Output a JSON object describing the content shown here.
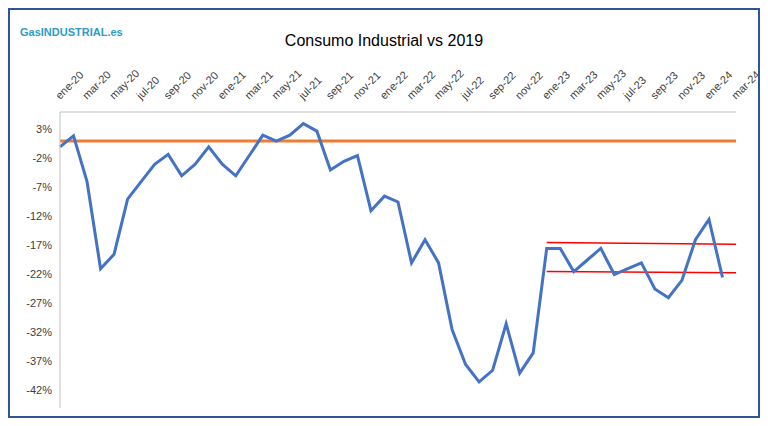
{
  "chart_data": {
    "type": "line",
    "title": "Consumo Industrial vs 2019",
    "logo": "GasINDUSTRIAL.es",
    "categories": [
      "ene-20",
      null,
      "mar-20",
      null,
      "may-20",
      null,
      "jul-20",
      null,
      "sep-20",
      null,
      "nov-20",
      null,
      "ene-21",
      null,
      "mar-21",
      null,
      "may-21",
      null,
      "jul-21",
      null,
      "sep-21",
      null,
      "nov-21",
      null,
      "ene-22",
      null,
      "mar-22",
      null,
      "may-22",
      null,
      "jul-22",
      null,
      "sep-22",
      null,
      "nov-22",
      null,
      "ene-23",
      null,
      "mar-23",
      null,
      "may-23",
      null,
      "jul-23",
      null,
      "sep-23",
      null,
      "nov-23",
      null,
      "ene-24",
      null,
      "mar-24"
    ],
    "series": [
      {
        "name": "Consumo Industrial vs 2019",
        "color": "#4472C4",
        "values": [
          0,
          1.9,
          -6,
          -21,
          -18.5,
          -9,
          -6,
          -3,
          -1.3,
          -5,
          -3,
          0,
          -3,
          -5,
          -1.5,
          2,
          1,
          2,
          4,
          2.7,
          -4,
          -2.5,
          -1.5,
          -11,
          -8.5,
          -9.5,
          -20,
          -16,
          -20,
          -31.5,
          -37.5,
          -40.5,
          -38.5,
          -30.5,
          -39,
          -35.5,
          -17.5,
          -17.5,
          -21.5,
          -19.5,
          -17.5,
          -22,
          -21,
          -20,
          -24.5,
          -26,
          -23,
          -16,
          -12.5,
          -22.5,
          null
        ]
      }
    ],
    "reference_lines": [
      {
        "y": 1,
        "color": "#ED7D31"
      },
      {
        "x": [
          "ene-23",
          "mar-24"
        ],
        "y": [
          -16.5,
          -16.8
        ],
        "color": "#FF0000"
      },
      {
        "x": [
          "ene-23",
          "mar-24"
        ],
        "y": [
          -21.5,
          -21.7
        ],
        "color": "#FF0000"
      }
    ],
    "ylim": [
      -45,
      6
    ],
    "yticks": [
      {
        "value": 3,
        "label": "3%"
      },
      {
        "value": -2,
        "label": "-2%"
      },
      {
        "value": -7,
        "label": "-7%"
      },
      {
        "value": -12,
        "label": "-12%"
      },
      {
        "value": -17,
        "label": "-17%"
      },
      {
        "value": -22,
        "label": "-22%"
      },
      {
        "value": -27,
        "label": "-27%"
      },
      {
        "value": -32,
        "label": "-32%"
      },
      {
        "value": -37,
        "label": "-37%"
      },
      {
        "value": -42,
        "label": "-42%"
      }
    ],
    "grid": false
  }
}
